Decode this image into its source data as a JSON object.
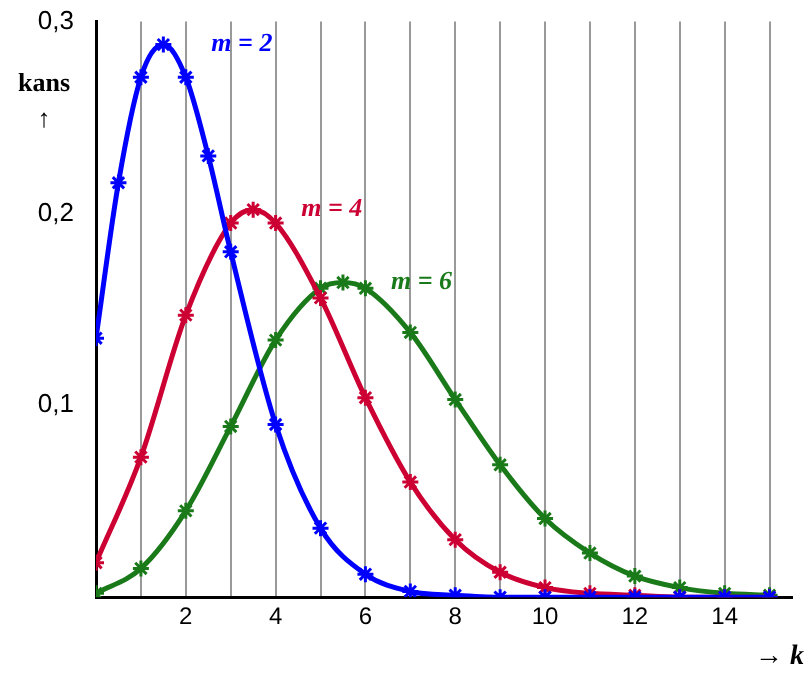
{
  "chart_data": {
    "type": "line",
    "xlabel": "→ k",
    "ylabel": "kans ↑",
    "xlim": [
      0,
      15.5
    ],
    "ylim": [
      0,
      0.3
    ],
    "xticks": [
      {
        "value": 0,
        "label": null
      },
      {
        "value": 1,
        "label": null
      },
      2,
      {
        "value": 3,
        "label": null
      },
      4,
      {
        "value": 5,
        "label": null
      },
      6,
      {
        "value": 7,
        "label": null
      },
      8,
      {
        "value": 9,
        "label": null
      },
      10,
      {
        "value": 11,
        "label": null
      },
      12,
      {
        "value": 13,
        "label": null
      },
      14,
      {
        "value": 15,
        "label": null
      }
    ],
    "yticks": [
      {
        "value": 0.1,
        "label": "0,1"
      },
      {
        "value": 0.2,
        "label": "0,2"
      },
      {
        "value": 0.3,
        "label": "0,3"
      }
    ],
    "grid": "x",
    "legend": false,
    "marker": "cross",
    "line_style": "solid",
    "series": [
      {
        "name": "m = 2",
        "color": "#0000ff",
        "x": [
          0,
          0.5,
          1,
          1.5,
          2,
          2.5,
          3,
          4,
          5,
          6,
          7,
          8,
          9,
          10,
          11,
          12,
          13,
          14,
          15
        ],
        "values": [
          0.135,
          0.216,
          0.271,
          0.288,
          0.271,
          0.23,
          0.18,
          0.09,
          0.036,
          0.012,
          0.003,
          0.001,
          0,
          0,
          0,
          0,
          0,
          0,
          0
        ]
      },
      {
        "name": "m = 4",
        "color": "#cc0033",
        "x": [
          0,
          1,
          2,
          3,
          3.5,
          4,
          5,
          6,
          7,
          8,
          9,
          10,
          11,
          12,
          13,
          14,
          15
        ],
        "values": [
          0.018,
          0.073,
          0.147,
          0.195,
          0.202,
          0.195,
          0.156,
          0.104,
          0.06,
          0.03,
          0.013,
          0.005,
          0.002,
          0.001,
          0,
          0,
          0
        ]
      },
      {
        "name": "m = 6",
        "color": "#1a7a1a",
        "x": [
          0,
          1,
          2,
          3,
          4,
          5,
          5.5,
          6,
          7,
          8,
          9,
          10,
          11,
          12,
          13,
          14,
          15
        ],
        "values": [
          0.002,
          0.015,
          0.045,
          0.089,
          0.134,
          0.161,
          0.164,
          0.161,
          0.138,
          0.103,
          0.069,
          0.041,
          0.023,
          0.011,
          0.005,
          0.002,
          0.001
        ]
      }
    ]
  }
}
